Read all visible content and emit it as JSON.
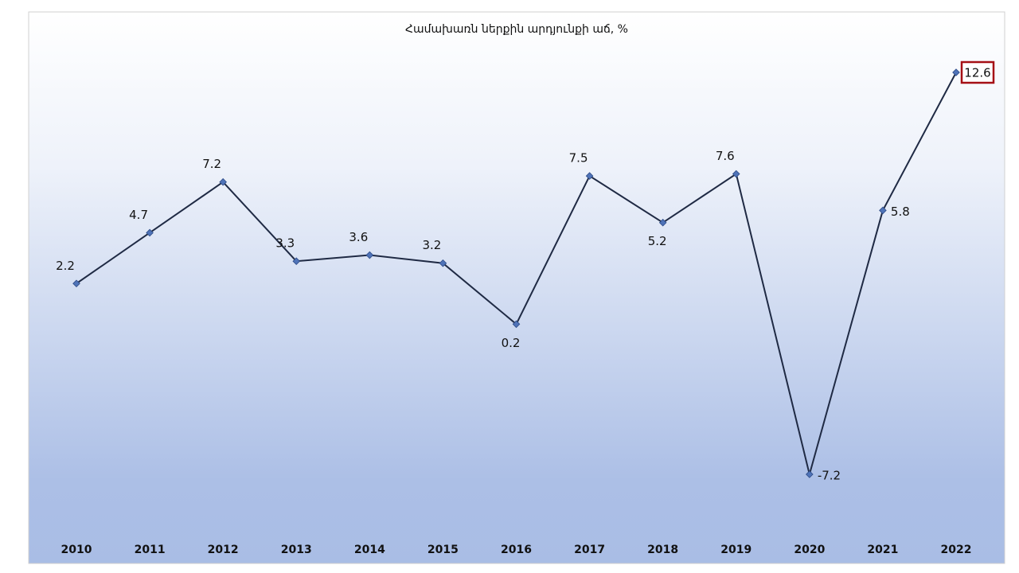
{
  "chart_data": {
    "type": "line",
    "title": "Համախառն ներքին  արդյունքի աճ, %",
    "categories": [
      "2010",
      "2011",
      "2012",
      "2013",
      "2014",
      "2015",
      "2016",
      "2017",
      "2018",
      "2019",
      "2020",
      "2021",
      "2022"
    ],
    "series": [
      {
        "name": "Համախառն ներքին  արդյունքի աճ, %",
        "color": "#1f2a44",
        "values": [
          2.2,
          4.7,
          7.2,
          3.3,
          3.6,
          3.2,
          0.2,
          7.5,
          5.2,
          7.6,
          -7.2,
          5.8,
          12.6
        ]
      }
    ],
    "grid": false
  }
}
